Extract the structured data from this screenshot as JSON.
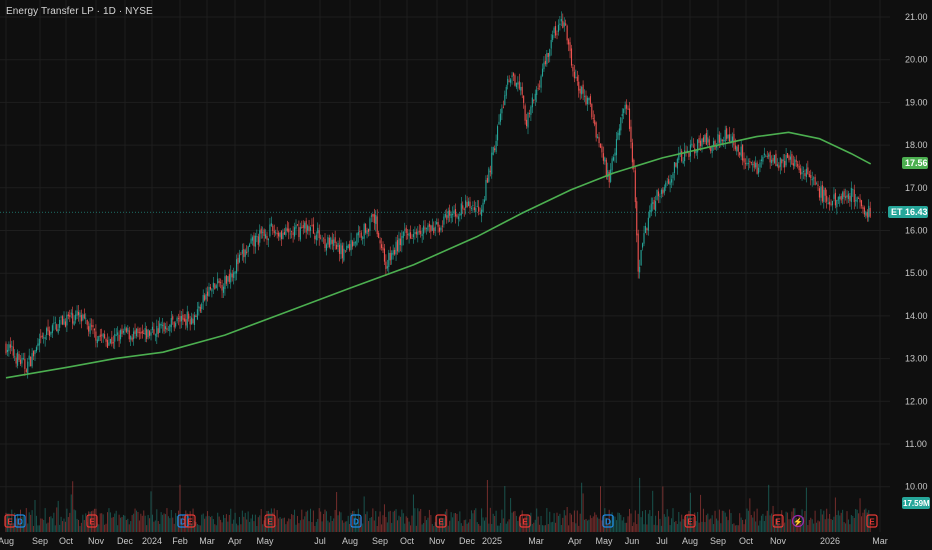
{
  "header": {
    "title": "Energy Transfer LP · 1D · NYSE"
  },
  "colors": {
    "background": "#0f0f0f",
    "grid": "#1e1e1e",
    "up": "#26a69a",
    "down": "#ef5350",
    "ma": "#4caf50",
    "axis_text": "#c7c7c7",
    "price_tag": "#26a69a",
    "ma_tag": "#4caf50",
    "dividend_marker": "#1e88e5",
    "earnings_marker": "#e53935",
    "split_marker": "#9c27b0"
  },
  "chart_data": {
    "type": "line",
    "symbol": "ET",
    "x_ticks": [
      "Aug",
      "Sep",
      "Oct",
      "Nov",
      "Dec",
      "2024",
      "Feb",
      "Mar",
      "Apr",
      "May",
      "Jul",
      "Aug",
      "Sep",
      "Oct",
      "Nov",
      "Dec",
      "2025",
      "Mar",
      "Apr",
      "May",
      "Jun",
      "Jul",
      "Aug",
      "Sep",
      "Oct",
      "Nov",
      "2026",
      "Mar"
    ],
    "y_ticks": [
      "21.00",
      "20.00",
      "19.00",
      "18.00",
      "17.00",
      "16.00",
      "15.00",
      "14.00",
      "13.00",
      "12.00",
      "11.00",
      "10.00"
    ],
    "ylim": [
      9.6,
      21.3
    ],
    "last_price": "16.43",
    "ma_value": "17.56",
    "volume_value": "17.59M",
    "price_path": [
      [
        "2023-08-01",
        13.3
      ],
      [
        "2023-08-20",
        12.8
      ],
      [
        "2023-09-10",
        13.6
      ],
      [
        "2023-09-25",
        13.9
      ],
      [
        "2023-10-10",
        14.0
      ],
      [
        "2023-10-25",
        13.6
      ],
      [
        "2023-11-10",
        13.4
      ],
      [
        "2023-11-25",
        13.6
      ],
      [
        "2023-12-10",
        13.5
      ],
      [
        "2023-12-28",
        13.7
      ],
      [
        "2024-01-15",
        13.9
      ],
      [
        "2024-02-01",
        14.0
      ],
      [
        "2024-02-15",
        14.6
      ],
      [
        "2024-03-01",
        14.8
      ],
      [
        "2024-03-15",
        15.3
      ],
      [
        "2024-04-01",
        15.8
      ],
      [
        "2024-04-15",
        16.0
      ],
      [
        "2024-05-01",
        15.9
      ],
      [
        "2024-05-20",
        16.1
      ],
      [
        "2024-06-10",
        15.7
      ],
      [
        "2024-06-25",
        15.5
      ],
      [
        "2024-07-10",
        15.9
      ],
      [
        "2024-07-25",
        16.3
      ],
      [
        "2024-08-05",
        15.2
      ],
      [
        "2024-08-20",
        15.8
      ],
      [
        "2024-09-05",
        16.1
      ],
      [
        "2024-09-20",
        16.0
      ],
      [
        "2024-10-05",
        16.3
      ],
      [
        "2024-10-25",
        16.6
      ],
      [
        "2024-11-05",
        16.5
      ],
      [
        "2024-11-12",
        17.2
      ],
      [
        "2024-11-22",
        18.4
      ],
      [
        "2024-12-01",
        19.4
      ],
      [
        "2024-12-12",
        19.6
      ],
      [
        "2024-12-20",
        18.5
      ],
      [
        "2025-01-05",
        19.8
      ],
      [
        "2025-01-15",
        20.6
      ],
      [
        "2025-01-25",
        20.9
      ],
      [
        "2025-02-05",
        19.5
      ],
      [
        "2025-02-20",
        18.9
      ],
      [
        "2025-03-01",
        18.0
      ],
      [
        "2025-03-10",
        17.2
      ],
      [
        "2025-03-20",
        18.5
      ],
      [
        "2025-03-28",
        19.0
      ],
      [
        "2025-04-03",
        17.5
      ],
      [
        "2025-04-08",
        15.0
      ],
      [
        "2025-04-15",
        16.1
      ],
      [
        "2025-04-25",
        16.8
      ],
      [
        "2025-05-05",
        17.1
      ],
      [
        "2025-05-15",
        17.6
      ],
      [
        "2025-05-28",
        17.9
      ],
      [
        "2025-06-10",
        18.1
      ],
      [
        "2025-06-20",
        18.0
      ],
      [
        "2025-07-01",
        18.3
      ],
      [
        "2025-07-15",
        17.9
      ],
      [
        "2025-07-30",
        17.4
      ],
      [
        "2025-08-10",
        17.8
      ],
      [
        "2025-08-25",
        17.6
      ],
      [
        "2025-09-08",
        17.6
      ],
      [
        "2025-09-20",
        17.3
      ],
      [
        "2025-10-01",
        16.9
      ],
      [
        "2025-10-12",
        16.6
      ],
      [
        "2025-10-25",
        16.9
      ],
      [
        "2025-11-05",
        16.8
      ],
      [
        "2025-11-12",
        16.5
      ],
      [
        "2025-11-20",
        16.43
      ]
    ],
    "ma_path": [
      [
        "2023-08-01",
        12.55
      ],
      [
        "2023-10-01",
        12.8
      ],
      [
        "2023-11-15",
        13.0
      ],
      [
        "2024-01-01",
        13.15
      ],
      [
        "2024-03-01",
        13.55
      ],
      [
        "2024-05-01",
        14.1
      ],
      [
        "2024-07-01",
        14.65
      ],
      [
        "2024-09-01",
        15.2
      ],
      [
        "2024-11-01",
        15.85
      ],
      [
        "2024-12-15",
        16.4
      ],
      [
        "2025-02-01",
        16.95
      ],
      [
        "2025-03-15",
        17.35
      ],
      [
        "2025-05-01",
        17.7
      ],
      [
        "2025-06-15",
        17.95
      ],
      [
        "2025-08-01",
        18.2
      ],
      [
        "2025-09-01",
        18.3
      ],
      [
        "2025-10-01",
        18.15
      ],
      [
        "2025-11-01",
        17.8
      ],
      [
        "2025-11-20",
        17.56
      ]
    ]
  }
}
